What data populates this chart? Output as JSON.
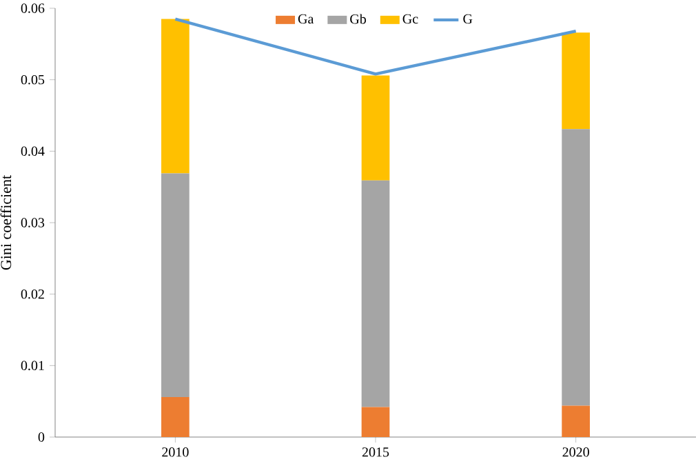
{
  "chart_data": {
    "type": "bar",
    "stacked": true,
    "ylabel": "Gini coefficient",
    "categories": [
      "2010",
      "2015",
      "2020"
    ],
    "series": [
      {
        "name": "Ga",
        "color": "#ed7d31",
        "values": [
          0.0056,
          0.0042,
          0.0044
        ]
      },
      {
        "name": "Gb",
        "color": "#a5a5a5",
        "values": [
          0.0313,
          0.0317,
          0.0387
        ]
      },
      {
        "name": "Gc",
        "color": "#ffc000",
        "values": [
          0.0216,
          0.0147,
          0.0135
        ]
      },
      {
        "name": "G",
        "color": "#5b9bd5",
        "type": "line",
        "values": [
          0.0585,
          0.0508,
          0.0568
        ]
      }
    ],
    "ylim": [
      0,
      0.06
    ],
    "yticks": [
      0,
      0.01,
      0.02,
      0.03,
      0.04,
      0.05,
      0.06
    ],
    "legend": "top",
    "grid": false,
    "marker": "none"
  }
}
